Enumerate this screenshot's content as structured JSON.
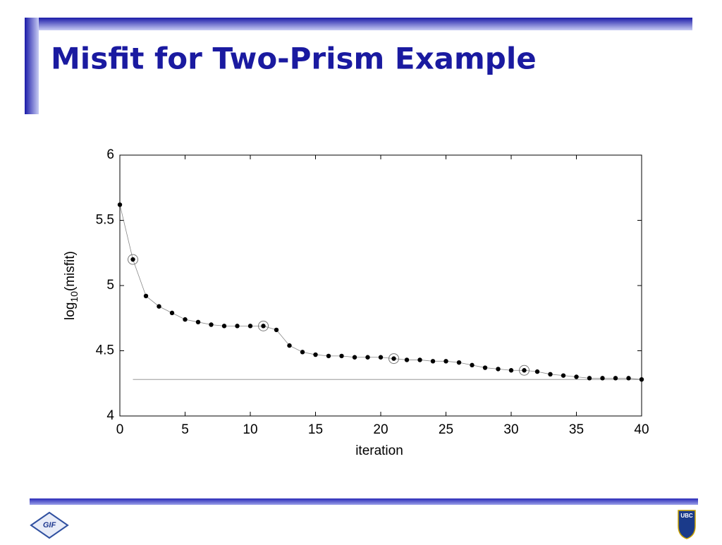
{
  "slide_title": "Misfit for Two-Prism Example",
  "logos": {
    "left": "GIF",
    "right": "UBC"
  },
  "chart_data": {
    "type": "line",
    "xlabel": "iteration",
    "ylabel": {
      "base": "log",
      "subscript": "10",
      "rest": "(misfit)"
    },
    "x": [
      0,
      1,
      2,
      3,
      4,
      5,
      6,
      7,
      8,
      9,
      10,
      11,
      12,
      13,
      14,
      15,
      16,
      17,
      18,
      19,
      20,
      21,
      22,
      23,
      24,
      25,
      26,
      27,
      28,
      29,
      30,
      31,
      32,
      33,
      34,
      35,
      36,
      37,
      38,
      39,
      40
    ],
    "series": [
      {
        "name": "misfit",
        "color": "#000000",
        "values": [
          5.62,
          5.2,
          4.92,
          4.84,
          4.79,
          4.74,
          4.72,
          4.7,
          4.69,
          4.69,
          4.69,
          4.69,
          4.66,
          4.54,
          4.49,
          4.47,
          4.46,
          4.46,
          4.45,
          4.45,
          4.45,
          4.44,
          4.43,
          4.43,
          4.42,
          4.42,
          4.41,
          4.39,
          4.37,
          4.36,
          4.35,
          4.35,
          4.34,
          4.32,
          4.31,
          4.3,
          4.29,
          4.29,
          4.29,
          4.29,
          4.28
        ]
      }
    ],
    "circled": [
      1,
      11,
      21,
      31
    ],
    "target": {
      "value": 4.28,
      "x": [
        1,
        40
      ]
    },
    "xlim": [
      0,
      40
    ],
    "ylim": [
      4,
      6
    ],
    "xticks": [
      0,
      5,
      10,
      15,
      20,
      25,
      30,
      35,
      40
    ],
    "yticks": [
      4,
      4.5,
      5,
      5.5,
      6
    ]
  }
}
